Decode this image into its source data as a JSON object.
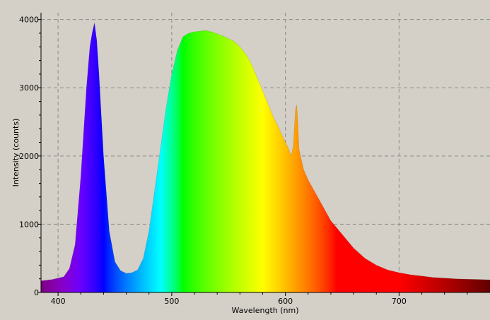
{
  "chart_data": {
    "type": "area",
    "title": "",
    "xlabel": "Wavelength (nm)",
    "ylabel": "Intensity (counts)",
    "xlim": [
      385,
      780
    ],
    "ylim": [
      0,
      4100
    ],
    "x_ticks": [
      400,
      500,
      600,
      700
    ],
    "y_ticks": [
      0,
      1000,
      2000,
      3000,
      4000
    ],
    "x_tick_labels": [
      "400",
      "500",
      "600",
      "700"
    ],
    "y_tick_labels": [
      "0",
      "1000",
      "2000",
      "3000",
      "4000"
    ],
    "grid": true,
    "grid_style": "dashed",
    "legend": "none",
    "fill": "visible-spectrum gradient by wavelength",
    "series": [
      {
        "x": [
          385,
          395,
          405,
          410,
          415,
          420,
          425,
          428,
          430,
          432,
          434,
          436,
          440,
          445,
          450,
          455,
          460,
          465,
          470,
          475,
          480,
          485,
          490,
          495,
          500,
          505,
          510,
          515,
          520,
          525,
          530,
          535,
          540,
          545,
          550,
          555,
          560,
          565,
          570,
          575,
          580,
          585,
          590,
          595,
          600,
          603,
          605,
          607,
          608,
          609,
          610,
          611,
          612,
          614,
          616,
          620,
          625,
          630,
          635,
          640,
          645,
          650,
          660,
          670,
          680,
          690,
          700,
          710,
          720,
          730,
          740,
          750,
          760,
          770,
          780
        ],
        "y": [
          170,
          190,
          230,
          350,
          700,
          1700,
          3000,
          3600,
          3800,
          3950,
          3700,
          3200,
          2000,
          900,
          450,
          320,
          280,
          290,
          330,
          500,
          900,
          1500,
          2100,
          2700,
          3200,
          3550,
          3750,
          3800,
          3820,
          3830,
          3840,
          3820,
          3790,
          3760,
          3720,
          3680,
          3600,
          3500,
          3350,
          3150,
          2950,
          2750,
          2550,
          2380,
          2200,
          2100,
          2000,
          2150,
          2450,
          2700,
          2750,
          2450,
          2100,
          1950,
          1800,
          1650,
          1500,
          1350,
          1200,
          1050,
          950,
          850,
          650,
          500,
          400,
          330,
          290,
          260,
          240,
          220,
          210,
          200,
          195,
          190,
          185
        ]
      }
    ]
  }
}
